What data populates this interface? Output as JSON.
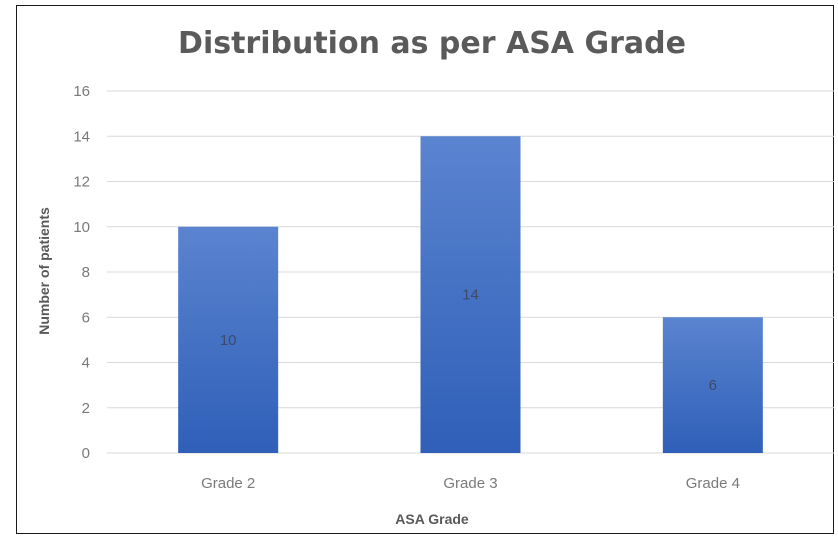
{
  "chart_data": {
    "type": "bar",
    "title": "Distribution as per ASA Grade",
    "xlabel": "ASA Grade",
    "ylabel": "Number of patients",
    "categories": [
      "Grade 2",
      "Grade 3",
      "Grade 4"
    ],
    "values": [
      10,
      14,
      6
    ],
    "data_labels": [
      "10",
      "14",
      "6"
    ],
    "ylim": [
      0,
      16
    ],
    "yticks": [
      "0",
      "2",
      "4",
      "6",
      "8",
      "10",
      "12",
      "14",
      "16"
    ],
    "grid": true,
    "legend": "none",
    "bar_color": "#4472c4"
  }
}
